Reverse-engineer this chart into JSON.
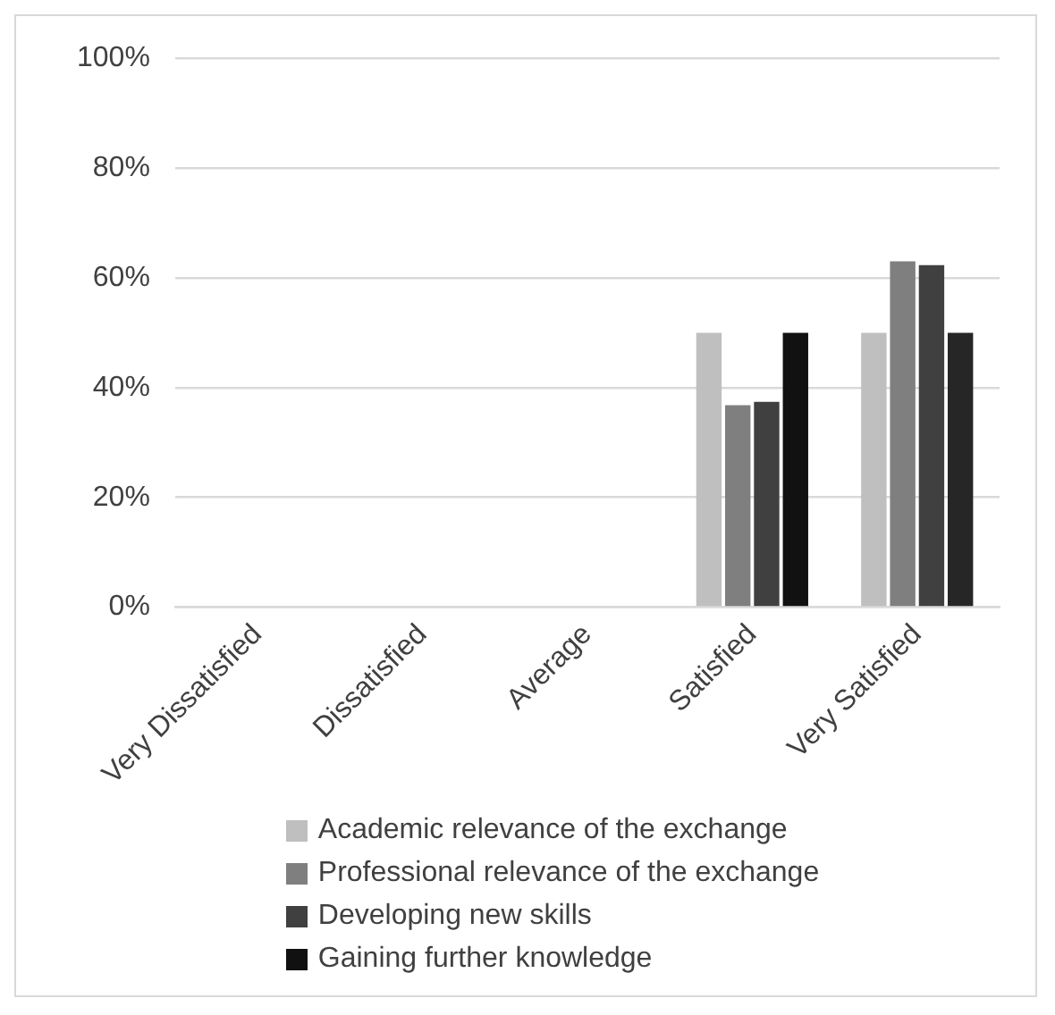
{
  "chart_data": {
    "type": "bar",
    "categories": [
      "Very Dissatisfied",
      "Dissatisfied",
      "Average",
      "Satisfied",
      "Very Satisfied"
    ],
    "series": [
      {
        "name": "Academic relevance of the exchange",
        "color": "#bfbfbf",
        "values": [
          0,
          0,
          0,
          50,
          50
        ]
      },
      {
        "name": "Professional relevance of the exchange",
        "color": "#7f7f7f",
        "values": [
          0,
          0,
          0,
          36.8,
          63
        ]
      },
      {
        "name": "Developing new skills",
        "color": "#404040",
        "values": [
          0,
          0,
          0,
          37.4,
          62.3
        ]
      },
      {
        "name": "Gaining further knowledge",
        "color": "#111111",
        "colors": [
          "#111111",
          "#111111",
          "#111111",
          "#111111",
          "#262626"
        ],
        "values": [
          0,
          0,
          0,
          50,
          50
        ]
      }
    ],
    "ylim": [
      0,
      100
    ],
    "yticks": [
      {
        "value": 0,
        "label": "0%"
      },
      {
        "value": 20,
        "label": "20%"
      },
      {
        "value": 40,
        "label": "40%"
      },
      {
        "value": 60,
        "label": "60%"
      },
      {
        "value": 80,
        "label": "80%"
      },
      {
        "value": 100,
        "label": "100%"
      }
    ],
    "grid": "y",
    "legend": "bottom"
  }
}
